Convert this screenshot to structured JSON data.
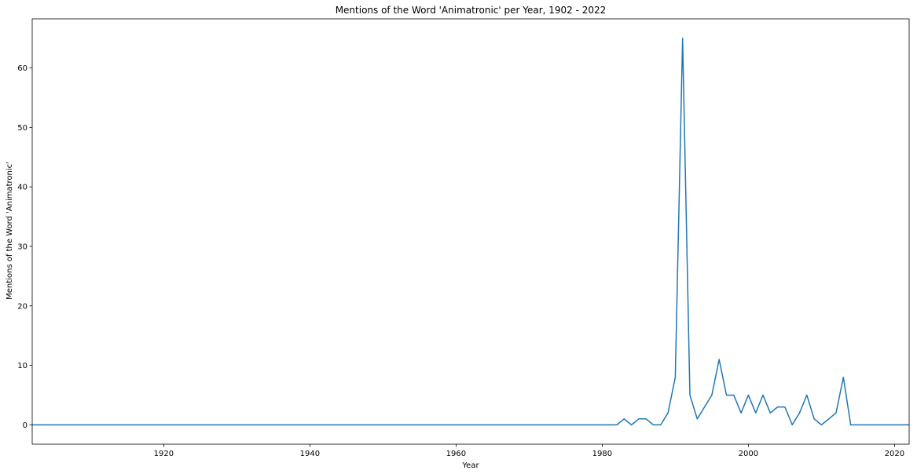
{
  "chart_data": {
    "type": "line",
    "title": "Mentions of the Word 'Animatronic' per Year, 1902 - 2022",
    "xlabel": "Year",
    "ylabel": "Mentions of the Word 'Animatronic'",
    "xlim": [
      1902,
      2022
    ],
    "ylim": [
      -3.25,
      68.25
    ],
    "xticks": [
      1920,
      1940,
      1960,
      1980,
      2000,
      2020
    ],
    "yticks": [
      0,
      10,
      20,
      30,
      40,
      50,
      60
    ],
    "grid": false,
    "legend": "none",
    "series": [
      {
        "color": "#1f77b4",
        "points": [
          [
            1902,
            0
          ],
          [
            1982,
            0
          ],
          [
            1983,
            1
          ],
          [
            1984,
            0
          ],
          [
            1985,
            1
          ],
          [
            1986,
            1
          ],
          [
            1987,
            0
          ],
          [
            1988,
            0
          ],
          [
            1989,
            2
          ],
          [
            1990,
            8
          ],
          [
            1991,
            65
          ],
          [
            1992,
            5
          ],
          [
            1993,
            1
          ],
          [
            1994,
            3
          ],
          [
            1995,
            5
          ],
          [
            1996,
            11
          ],
          [
            1997,
            5
          ],
          [
            1998,
            5
          ],
          [
            1999,
            2
          ],
          [
            2000,
            5
          ],
          [
            2001,
            2
          ],
          [
            2002,
            5
          ],
          [
            2003,
            2
          ],
          [
            2004,
            3
          ],
          [
            2005,
            3
          ],
          [
            2006,
            0
          ],
          [
            2007,
            2
          ],
          [
            2008,
            5
          ],
          [
            2009,
            1
          ],
          [
            2010,
            0
          ],
          [
            2011,
            1
          ],
          [
            2012,
            2
          ],
          [
            2013,
            8
          ],
          [
            2014,
            0
          ],
          [
            2022,
            0
          ]
        ]
      }
    ]
  }
}
